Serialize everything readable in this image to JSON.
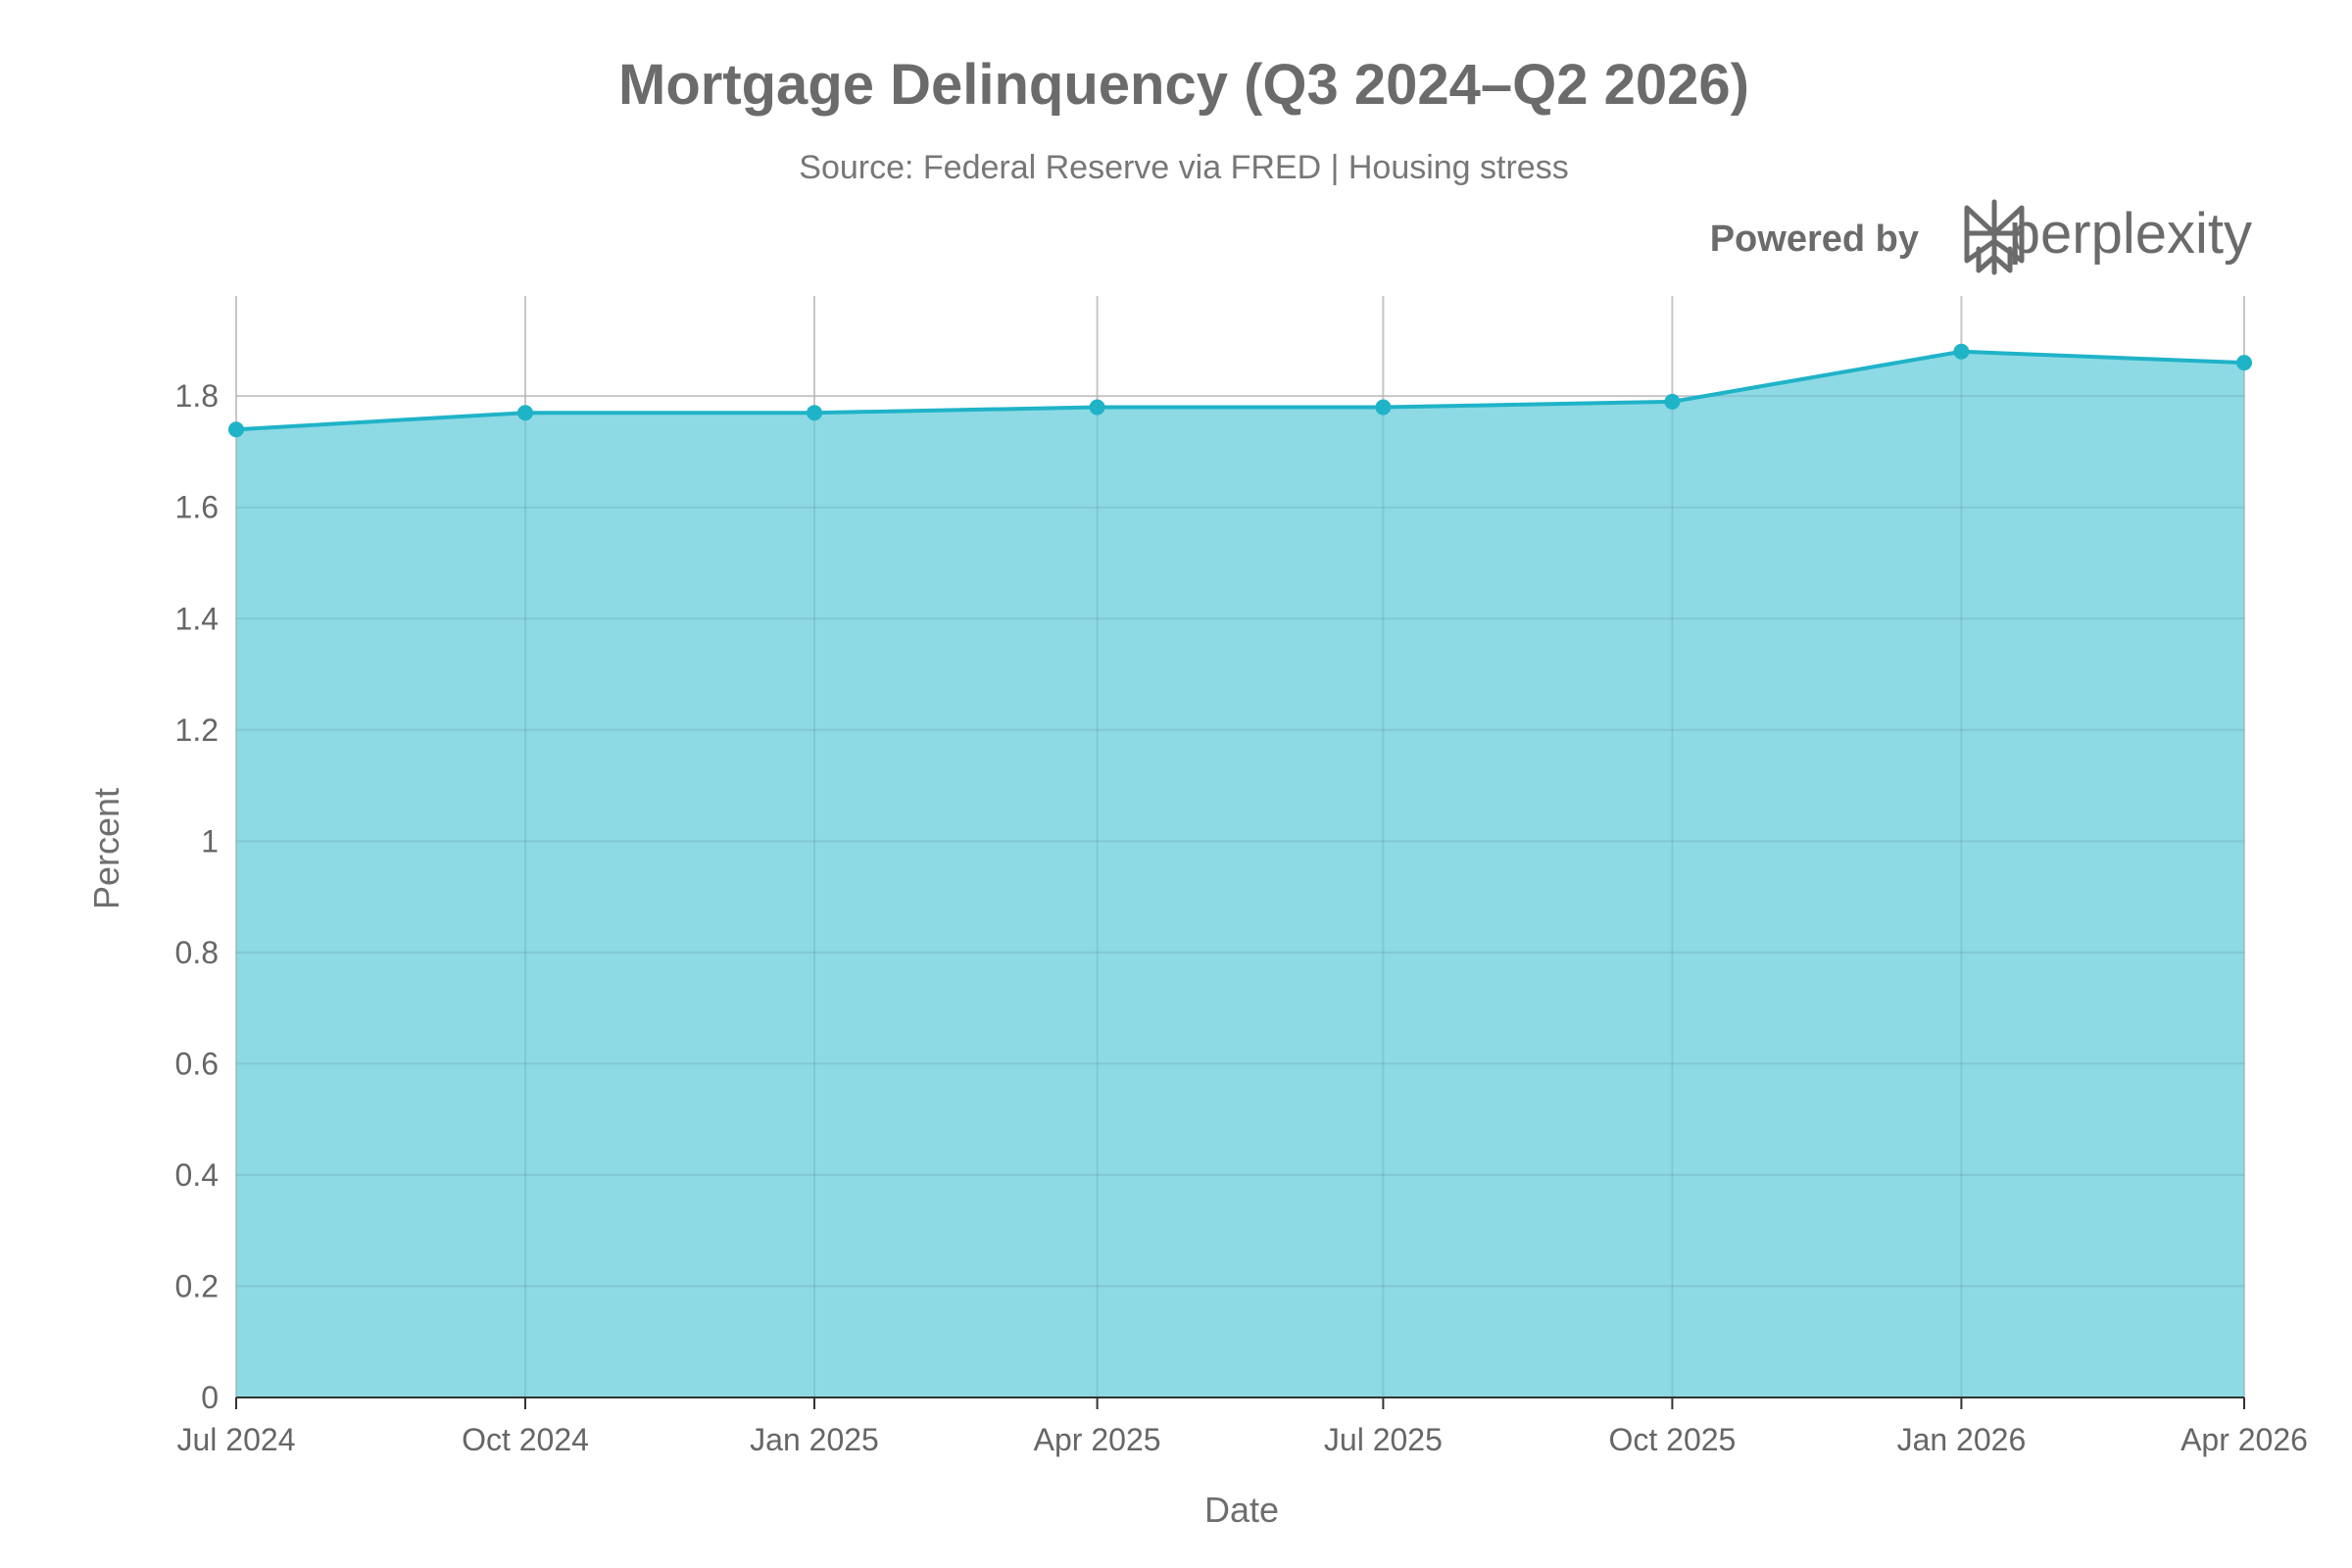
{
  "chart_data": {
    "type": "area",
    "title": "Mortgage Delinquency (Q3 2024–Q2 2026)",
    "subtitle": "Source: Federal Reserve via FRED | Housing stress",
    "xlabel": "Date",
    "ylabel": "Percent",
    "x": [
      "2024-07-01",
      "2024-10-01",
      "2025-01-01",
      "2025-04-01",
      "2025-07-01",
      "2025-10-01",
      "2026-01-01",
      "2026-04-01"
    ],
    "x_tick_labels": [
      "Jul 2024",
      "Oct 2024",
      "Jan 2025",
      "Apr 2025",
      "Jul 2025",
      "Oct 2025",
      "Jan 2026",
      "Apr 2026"
    ],
    "values": [
      1.74,
      1.77,
      1.77,
      1.78,
      1.78,
      1.79,
      1.88,
      1.86
    ],
    "y_ticks": [
      "0",
      "0.2",
      "0.4",
      "0.6",
      "0.8",
      "1",
      "1.2",
      "1.4",
      "1.6",
      "1.8"
    ],
    "ylim": [
      0,
      1.98
    ],
    "grid": true,
    "legend": "none",
    "colors": {
      "line": "#1fb3c8",
      "fill": "#8ddae4",
      "grid": "#d8d8d8",
      "text": "#666666"
    }
  },
  "branding": {
    "powered_by": "Powered by",
    "brand_name": "perplexity",
    "logo_icon": "perplexity-logo-icon"
  }
}
